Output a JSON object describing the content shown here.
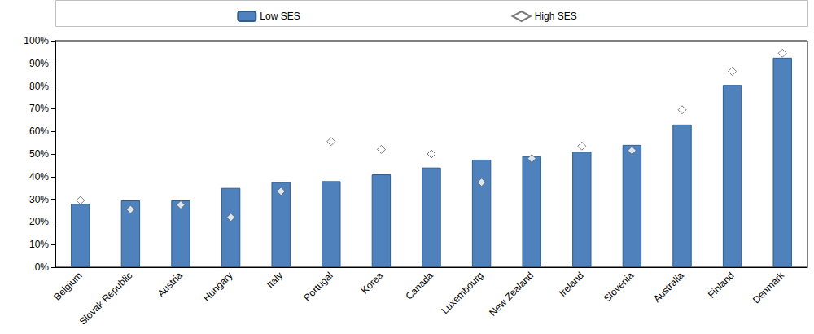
{
  "chart_data": {
    "type": "bar",
    "categories": [
      "Belgium",
      "Slovak Republic",
      "Austria",
      "Hungary",
      "Italy",
      "Portugal",
      "Korea",
      "Canada",
      "Luxembourg",
      "New Zealand",
      "Ireland",
      "Slovenia",
      "Australia",
      "Finland",
      "Denmark"
    ],
    "series": [
      {
        "name": "Low SES",
        "type": "bar",
        "color": "#4f81bd",
        "values": [
          28,
          29.5,
          29.5,
          35,
          37.5,
          38,
          41,
          44,
          47.5,
          49,
          51,
          54,
          63,
          80.5,
          92.5
        ]
      },
      {
        "name": "High SES",
        "type": "scatter",
        "marker": "diamond",
        "color": "#ffffff",
        "values": [
          29.5,
          25.5,
          27.5,
          22,
          33.5,
          55.5,
          52,
          50,
          37.5,
          48,
          53.5,
          51.5,
          69.5,
          86.5,
          94.5
        ]
      }
    ],
    "ylim": [
      0,
      100
    ],
    "yticks": [
      {
        "value": 0,
        "label": "0%"
      },
      {
        "value": 10,
        "label": "10%"
      },
      {
        "value": 20,
        "label": "20%"
      },
      {
        "value": 30,
        "label": "30%"
      },
      {
        "value": 40,
        "label": "40%"
      },
      {
        "value": 50,
        "label": "50%"
      },
      {
        "value": 60,
        "label": "60%"
      },
      {
        "value": 70,
        "label": "70%"
      },
      {
        "value": 80,
        "label": "80%"
      },
      {
        "value": 90,
        "label": "90%"
      },
      {
        "value": 100,
        "label": "100%"
      }
    ],
    "grid": false,
    "legend": "top"
  }
}
